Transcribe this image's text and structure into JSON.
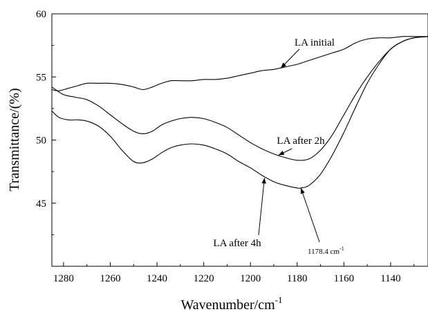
{
  "chart_data": {
    "type": "line",
    "title": "",
    "xlabel": "Wavenumber/cm",
    "xlabel_superscript": "-1",
    "ylabel": "Transmittance/(%)",
    "xlim": [
      1285,
      1124
    ],
    "ylim": [
      40,
      60
    ],
    "x_reversed": true,
    "x_ticks": [
      1280,
      1260,
      1240,
      1220,
      1200,
      1180,
      1160,
      1140
    ],
    "y_ticks": [
      45,
      50,
      55,
      60
    ],
    "grid": false,
    "legend": "none",
    "series": [
      {
        "name": "LA initial",
        "x": [
          1285,
          1282,
          1278,
          1274,
          1270,
          1265,
          1260,
          1255,
          1250,
          1246,
          1242,
          1238,
          1234,
          1230,
          1225,
          1220,
          1215,
          1210,
          1205,
          1200,
          1195,
          1190,
          1185,
          1180,
          1175,
          1170,
          1165,
          1160,
          1155,
          1150,
          1145,
          1140,
          1135,
          1130,
          1124
        ],
        "y": [
          54.0,
          53.9,
          54.1,
          54.3,
          54.5,
          54.5,
          54.5,
          54.4,
          54.2,
          54.0,
          54.2,
          54.5,
          54.7,
          54.7,
          54.7,
          54.8,
          54.8,
          54.9,
          55.1,
          55.3,
          55.5,
          55.6,
          55.8,
          56.0,
          56.3,
          56.6,
          56.9,
          57.2,
          57.7,
          58.0,
          58.1,
          58.1,
          58.2,
          58.2,
          58.2
        ]
      },
      {
        "name": "LA after 2h",
        "x": [
          1285,
          1280,
          1275,
          1270,
          1265,
          1260,
          1255,
          1250,
          1246,
          1242,
          1238,
          1234,
          1230,
          1225,
          1220,
          1215,
          1210,
          1205,
          1200,
          1195,
          1190,
          1185,
          1180,
          1175,
          1170,
          1165,
          1160,
          1155,
          1150,
          1145,
          1140,
          1135,
          1130,
          1124
        ],
        "y": [
          54.2,
          53.6,
          53.4,
          53.2,
          52.7,
          52.0,
          51.3,
          50.7,
          50.5,
          50.7,
          51.2,
          51.5,
          51.7,
          51.8,
          51.7,
          51.4,
          51.0,
          50.4,
          49.8,
          49.3,
          48.9,
          48.6,
          48.4,
          48.5,
          49.2,
          50.4,
          52.0,
          53.6,
          55.0,
          56.2,
          57.2,
          57.8,
          58.1,
          58.2
        ]
      },
      {
        "name": "LA after 4h",
        "x": [
          1285,
          1282,
          1278,
          1274,
          1270,
          1265,
          1260,
          1255,
          1250,
          1246,
          1242,
          1238,
          1234,
          1230,
          1225,
          1220,
          1215,
          1210,
          1205,
          1200,
          1195,
          1190,
          1185,
          1180,
          1178.4,
          1175,
          1170,
          1165,
          1160,
          1155,
          1150,
          1145,
          1140,
          1135,
          1130,
          1124
        ],
        "y": [
          52.3,
          51.8,
          51.6,
          51.6,
          51.5,
          51.1,
          50.3,
          49.2,
          48.3,
          48.2,
          48.5,
          49.0,
          49.4,
          49.6,
          49.7,
          49.6,
          49.3,
          48.9,
          48.3,
          47.8,
          47.2,
          46.7,
          46.4,
          46.2,
          46.2,
          46.4,
          47.3,
          48.8,
          50.6,
          52.6,
          54.5,
          56.0,
          57.2,
          57.8,
          58.1,
          58.2
        ]
      }
    ],
    "annotations": [
      {
        "text": "LA initial",
        "target": [
          1187,
          55.7
        ]
      },
      {
        "text": "LA after 2h",
        "target": [
          1188,
          48.8
        ]
      },
      {
        "text": "LA after 4h",
        "target": [
          1194,
          47.0
        ]
      },
      {
        "text": "1178.4 cm",
        "superscript": "-1",
        "target": [
          1178.4,
          46.2
        ]
      }
    ]
  }
}
